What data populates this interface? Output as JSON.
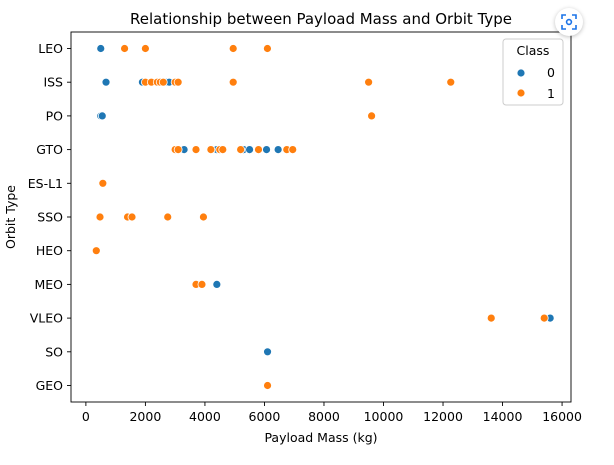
{
  "chart_data": {
    "type": "scatter",
    "title": "Relationship between Payload Mass and Orbit Type",
    "xlabel": "Payload Mass (kg)",
    "ylabel": "Orbit Type",
    "xlim": [
      -500,
      16300
    ],
    "x_ticks": [
      0,
      2000,
      4000,
      6000,
      8000,
      10000,
      12000,
      14000,
      16000
    ],
    "x_tick_labels": [
      "0",
      "2000",
      "4000",
      "6000",
      "8000",
      "10000",
      "12000",
      "14000",
      "16000"
    ],
    "categories": [
      "LEO",
      "ISS",
      "PO",
      "GTO",
      "ES-L1",
      "SSO",
      "HEO",
      "MEO",
      "VLEO",
      "SO",
      "GEO"
    ],
    "grid": false,
    "legend": {
      "title": "Class",
      "placement": "top-right",
      "entries": [
        {
          "label": "0",
          "color": "#1f77b4"
        },
        {
          "label": "1",
          "color": "#ff7f0e"
        }
      ]
    },
    "series": [
      {
        "class": "0",
        "color": "#1f77b4",
        "points": [
          {
            "x": 500,
            "y": "LEO"
          },
          {
            "x": 677,
            "y": "ISS"
          },
          {
            "x": 1900,
            "y": "ISS"
          },
          {
            "x": 2700,
            "y": "ISS"
          },
          {
            "x": 2800,
            "y": "ISS"
          },
          {
            "x": 500,
            "y": "PO"
          },
          {
            "x": 550,
            "y": "PO"
          },
          {
            "x": 3300,
            "y": "GTO"
          },
          {
            "x": 4400,
            "y": "GTO"
          },
          {
            "x": 4500,
            "y": "GTO"
          },
          {
            "x": 5300,
            "y": "GTO"
          },
          {
            "x": 5500,
            "y": "GTO"
          },
          {
            "x": 6070,
            "y": "GTO"
          },
          {
            "x": 6460,
            "y": "GTO"
          },
          {
            "x": 4400,
            "y": "MEO"
          },
          {
            "x": 15600,
            "y": "VLEO"
          },
          {
            "x": 6104,
            "y": "SO"
          }
        ]
      },
      {
        "class": "1",
        "color": "#ff7f0e",
        "points": [
          {
            "x": 1300,
            "y": "LEO"
          },
          {
            "x": 2000,
            "y": "LEO"
          },
          {
            "x": 4950,
            "y": "LEO"
          },
          {
            "x": 6100,
            "y": "LEO"
          },
          {
            "x": 2000,
            "y": "ISS"
          },
          {
            "x": 2200,
            "y": "ISS"
          },
          {
            "x": 2400,
            "y": "ISS"
          },
          {
            "x": 2500,
            "y": "ISS"
          },
          {
            "x": 2600,
            "y": "ISS"
          },
          {
            "x": 3000,
            "y": "ISS"
          },
          {
            "x": 3100,
            "y": "ISS"
          },
          {
            "x": 4950,
            "y": "ISS"
          },
          {
            "x": 9500,
            "y": "ISS"
          },
          {
            "x": 12260,
            "y": "ISS"
          },
          {
            "x": 9600,
            "y": "PO"
          },
          {
            "x": 3000,
            "y": "GTO"
          },
          {
            "x": 3100,
            "y": "GTO"
          },
          {
            "x": 3700,
            "y": "GTO"
          },
          {
            "x": 4200,
            "y": "GTO"
          },
          {
            "x": 4500,
            "y": "GTO"
          },
          {
            "x": 4600,
            "y": "GTO"
          },
          {
            "x": 5200,
            "y": "GTO"
          },
          {
            "x": 5800,
            "y": "GTO"
          },
          {
            "x": 6750,
            "y": "GTO"
          },
          {
            "x": 6950,
            "y": "GTO"
          },
          {
            "x": 570,
            "y": "ES-L1"
          },
          {
            "x": 475,
            "y": "SSO"
          },
          {
            "x": 1400,
            "y": "SSO"
          },
          {
            "x": 1550,
            "y": "SSO"
          },
          {
            "x": 2750,
            "y": "SSO"
          },
          {
            "x": 3950,
            "y": "SSO"
          },
          {
            "x": 350,
            "y": "HEO"
          },
          {
            "x": 3700,
            "y": "MEO"
          },
          {
            "x": 3900,
            "y": "MEO"
          },
          {
            "x": 13620,
            "y": "VLEO"
          },
          {
            "x": 15400,
            "y": "VLEO"
          },
          {
            "x": 6104,
            "y": "GEO"
          }
        ]
      }
    ]
  },
  "ui": {
    "focus_icon": "focus-frame-icon"
  }
}
